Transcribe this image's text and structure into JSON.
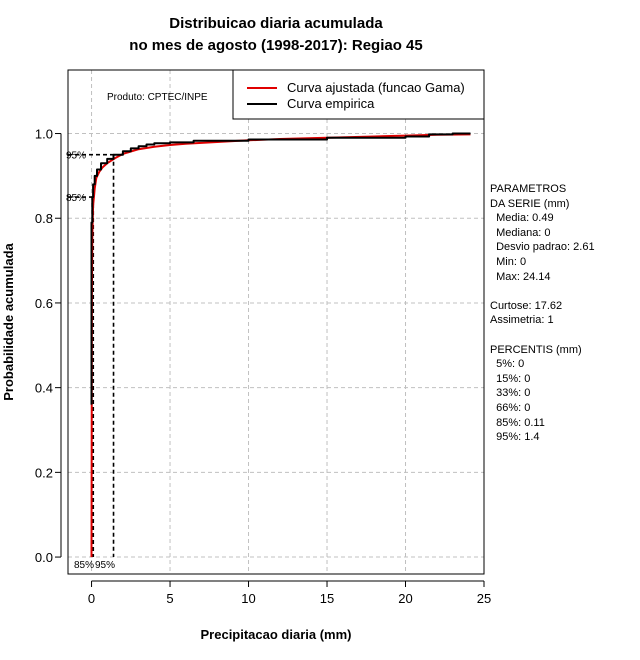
{
  "chart_data": {
    "type": "line",
    "title_line1": "Distribuicao diaria acumulada",
    "title_line2": "no mes de agosto (1998-2017): Regiao 45",
    "xlabel": "Precipitacao diaria (mm)",
    "ylabel": "Probabilidade acumulada",
    "xlim": [
      -1.5,
      25
    ],
    "ylim": [
      -0.04,
      1.15
    ],
    "xticks": [
      0,
      5,
      10,
      15,
      20,
      25
    ],
    "yticks": [
      0.0,
      0.2,
      0.4,
      0.6,
      0.8,
      1.0
    ],
    "xtick_labels": [
      "0",
      "5",
      "10",
      "15",
      "20",
      "25"
    ],
    "ytick_labels": [
      "0.0",
      "0.2",
      "0.4",
      "0.6",
      "0.8",
      "1.0"
    ],
    "grid": true,
    "legend_position": "top-right",
    "product_label": "Produto: CPTEC/INPE",
    "series": [
      {
        "name": "Curva ajustada (funcao Gama)",
        "color": "#e00000",
        "x": [
          0.0,
          0.02,
          0.05,
          0.1,
          0.2,
          0.3,
          0.5,
          0.7,
          1.0,
          1.5,
          2.0,
          3.0,
          4.0,
          5.0,
          6.0,
          8.0,
          10.0,
          12.0,
          15.0,
          18.0,
          20.0,
          22.0,
          24.14
        ],
        "y": [
          0.0,
          0.62,
          0.76,
          0.83,
          0.87,
          0.895,
          0.91,
          0.92,
          0.93,
          0.942,
          0.952,
          0.963,
          0.969,
          0.973,
          0.976,
          0.98,
          0.984,
          0.987,
          0.99,
          0.993,
          0.995,
          0.997,
          0.998
        ]
      },
      {
        "name": "Curva empirica",
        "color": "#000000",
        "x": [
          0.0,
          0.0,
          0.05,
          0.05,
          0.1,
          0.1,
          0.2,
          0.2,
          0.35,
          0.35,
          0.6,
          0.6,
          1.0,
          1.0,
          1.4,
          1.4,
          2.0,
          2.0,
          2.5,
          2.5,
          3.0,
          3.0,
          3.5,
          3.5,
          4.0,
          4.0,
          5.0,
          5.0,
          6.5,
          6.5,
          10.0,
          10.0,
          15.0,
          15.0,
          20.0,
          20.0,
          21.5,
          21.5,
          23.0,
          23.0,
          24.14
        ],
        "y": [
          0.36,
          0.79,
          0.79,
          0.85,
          0.85,
          0.88,
          0.88,
          0.9,
          0.9,
          0.915,
          0.915,
          0.93,
          0.93,
          0.94,
          0.94,
          0.95,
          0.95,
          0.958,
          0.958,
          0.965,
          0.965,
          0.97,
          0.97,
          0.974,
          0.974,
          0.977,
          0.977,
          0.979,
          0.979,
          0.983,
          0.983,
          0.986,
          0.986,
          0.99,
          0.99,
          0.993,
          0.993,
          0.998,
          0.998,
          1.0,
          1.0
        ]
      }
    ],
    "percentile_markers": [
      {
        "label": "85%",
        "x": 0.11,
        "y": 0.85
      },
      {
        "label": "95%",
        "x": 1.4,
        "y": 0.95
      }
    ]
  },
  "stats": {
    "header1": "PARAMETROS",
    "header2": "DA SERIE (mm)",
    "media": "  Media: 0.49",
    "mediana": "  Mediana: 0",
    "desvio": "  Desvio padrao: 2.61",
    "min": "  Min: 0",
    "max": "  Max: 24.14",
    "curtose": "Curtose: 17.62",
    "assimetria": "Assimetria: 1",
    "percentis_header": "PERCENTIS (mm)",
    "p5": "  5%: 0",
    "p15": "  15%: 0",
    "p33": "  33%: 0",
    "p66": "  66%: 0",
    "p85": "  85%: 0.11",
    "p95": "  95%: 1.4"
  }
}
